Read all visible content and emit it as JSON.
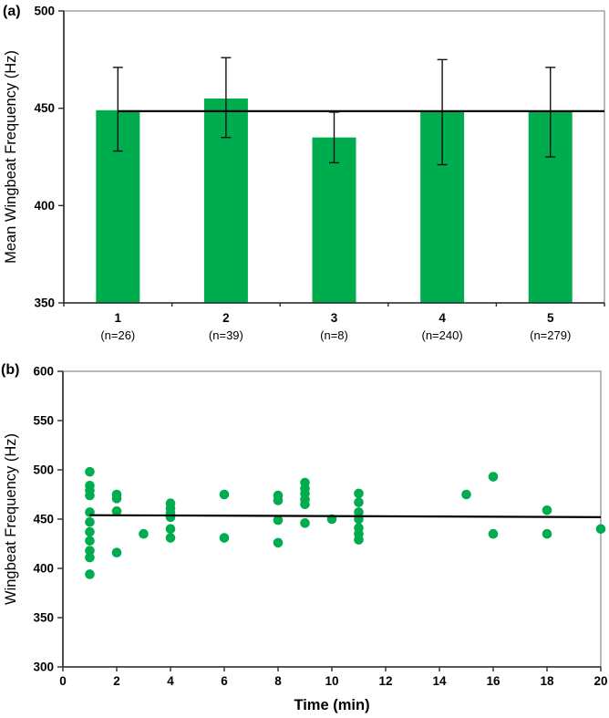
{
  "figure": {
    "panels": [
      {
        "label": "(a)"
      },
      {
        "label": "(b)"
      }
    ]
  },
  "colors": {
    "green": "#00AD4E",
    "frame": "#9b9b9b",
    "axis": "#2b2b2b",
    "line": "#000000",
    "text": "#000000"
  },
  "chart_data": [
    {
      "type": "bar",
      "panel": "a",
      "title": "",
      "xlabel": "",
      "ylabel": "Mean Wingbeat Frequency (Hz)",
      "ylim": [
        350,
        500
      ],
      "yticks": [
        350,
        400,
        450,
        500
      ],
      "categories": [
        "1",
        "2",
        "3",
        "4",
        "5"
      ],
      "category_sublabels": [
        "(n=26)",
        "(n=39)",
        "(n=8)",
        "(n=240)",
        "(n=279)"
      ],
      "values": [
        449,
        455,
        435,
        448,
        448
      ],
      "error_low": [
        428,
        435,
        422,
        421,
        425
      ],
      "error_high": [
        471,
        476,
        448,
        475,
        471
      ],
      "trend_line": {
        "y": 448.5,
        "note": "horizontal mean line from category 1 center to right plot edge"
      },
      "bar_color": "#00AD4E",
      "grid": false,
      "legend": "none"
    },
    {
      "type": "scatter",
      "panel": "b",
      "title": "",
      "xlabel": "Time (min)",
      "ylabel": "Wingbeat Frequency (Hz)",
      "xlim": [
        0,
        20
      ],
      "ylim": [
        300,
        600
      ],
      "xticks": [
        0,
        2,
        4,
        6,
        8,
        10,
        12,
        14,
        16,
        18,
        20
      ],
      "yticks": [
        300,
        350,
        400,
        450,
        500,
        550,
        600
      ],
      "points": [
        [
          1,
          498
        ],
        [
          1,
          484
        ],
        [
          1,
          479
        ],
        [
          1,
          474
        ],
        [
          1,
          457
        ],
        [
          1,
          447
        ],
        [
          1,
          437
        ],
        [
          1,
          428
        ],
        [
          1,
          418
        ],
        [
          1,
          411
        ],
        [
          1,
          394
        ],
        [
          2,
          475
        ],
        [
          2,
          471
        ],
        [
          2,
          458
        ],
        [
          2,
          416
        ],
        [
          3,
          435
        ],
        [
          4,
          466
        ],
        [
          4,
          461
        ],
        [
          4,
          456
        ],
        [
          4,
          452
        ],
        [
          4,
          440
        ],
        [
          4,
          431
        ],
        [
          6,
          475
        ],
        [
          6,
          431
        ],
        [
          8,
          474
        ],
        [
          8,
          469
        ],
        [
          8,
          449
        ],
        [
          8,
          426
        ],
        [
          9,
          487
        ],
        [
          9,
          481
        ],
        [
          9,
          476
        ],
        [
          9,
          470
        ],
        [
          9,
          465
        ],
        [
          9,
          446
        ],
        [
          10,
          450
        ],
        [
          11,
          476
        ],
        [
          11,
          467
        ],
        [
          11,
          457
        ],
        [
          11,
          450
        ],
        [
          11,
          441
        ],
        [
          11,
          435
        ],
        [
          11,
          429
        ],
        [
          15,
          475
        ],
        [
          16,
          493
        ],
        [
          16,
          435
        ],
        [
          18,
          459
        ],
        [
          18,
          435
        ],
        [
          20,
          440
        ]
      ],
      "trend_line": {
        "x1": 1,
        "y1": 454,
        "x2": 20,
        "y2": 452
      },
      "point_color": "#00AD4E",
      "grid": false,
      "legend": "none"
    }
  ]
}
